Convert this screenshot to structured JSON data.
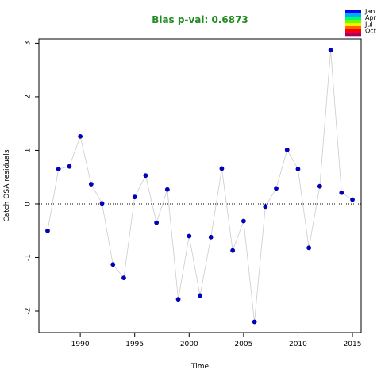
{
  "chart_data": {
    "type": "scatter",
    "title": "Bias p-val: 0.6873",
    "title_color": "#228b22",
    "xlabel": "Time",
    "ylabel": "Catch OSA residuals",
    "xlim": [
      1986.2,
      2015.8
    ],
    "ylim": [
      -2.4,
      3.08
    ],
    "x_ticks": [
      1990,
      1995,
      2000,
      2005,
      2010,
      2015
    ],
    "y_ticks": [
      -2,
      -1,
      0,
      1,
      2,
      3
    ],
    "grid": false,
    "reference_line": 0,
    "point_color": "#0000cd",
    "line_color": "#cccccc",
    "x": [
      1987,
      1988,
      1989,
      1990,
      1991,
      1992,
      1993,
      1994,
      1995,
      1996,
      1997,
      1998,
      1999,
      2000,
      2001,
      2002,
      2003,
      2004,
      2005,
      2006,
      2007,
      2008,
      2009,
      2010,
      2011,
      2012,
      2013,
      2014,
      2015
    ],
    "y": [
      -0.5,
      0.65,
      0.7,
      1.26,
      0.37,
      0.01,
      -1.13,
      -1.38,
      0.13,
      0.53,
      -0.35,
      0.27,
      -1.78,
      -0.6,
      -1.71,
      -0.62,
      0.66,
      -0.87,
      -0.32,
      -2.2,
      -0.05,
      0.29,
      1.01,
      0.65,
      -0.82,
      0.33,
      2.87,
      0.21,
      0.08
    ],
    "legend": {
      "position": "top-right",
      "entries": [
        "Jan",
        "Apr",
        "Jul",
        "Oct"
      ],
      "colors": [
        "#0000ff",
        "#00aaff",
        "#00ff66",
        "#66ff00",
        "#ffee00",
        "#ff6600",
        "#ff0000",
        "#aa0066"
      ]
    }
  }
}
